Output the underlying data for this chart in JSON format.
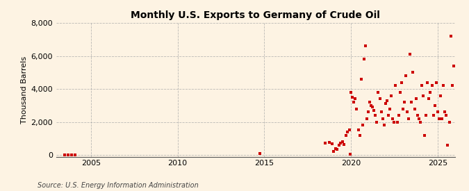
{
  "title": "Monthly U.S. Exports to Germany of Crude Oil",
  "ylabel": "Thousand Barrels",
  "source": "Source: U.S. Energy Information Administration",
  "background_color": "#fdf3e3",
  "plot_bg_color": "#fdf3e3",
  "marker_color": "#cc0000",
  "marker_size": 3.5,
  "xlim": [
    2003.0,
    2026.0
  ],
  "ylim": [
    -100,
    8000
  ],
  "yticks": [
    0,
    2000,
    4000,
    6000,
    8000
  ],
  "xticks": [
    2005,
    2010,
    2015,
    2020,
    2025
  ],
  "scatter_data": [
    [
      2003.5,
      10
    ],
    [
      2003.7,
      12
    ],
    [
      2003.9,
      8
    ],
    [
      2004.1,
      10
    ],
    [
      2014.75,
      100
    ],
    [
      2018.5,
      700
    ],
    [
      2018.75,
      750
    ],
    [
      2018.9,
      680
    ],
    [
      2019.0,
      200
    ],
    [
      2019.1,
      400
    ],
    [
      2019.2,
      350
    ],
    [
      2019.3,
      600
    ],
    [
      2019.4,
      700
    ],
    [
      2019.5,
      800
    ],
    [
      2019.6,
      650
    ],
    [
      2019.7,
      1200
    ],
    [
      2019.8,
      1400
    ],
    [
      2019.9,
      1500
    ],
    [
      2019.95,
      50
    ],
    [
      2020.0,
      3800
    ],
    [
      2020.08,
      3500
    ],
    [
      2020.17,
      3200
    ],
    [
      2020.25,
      3400
    ],
    [
      2020.33,
      2800
    ],
    [
      2020.42,
      1500
    ],
    [
      2020.5,
      1200
    ],
    [
      2020.58,
      4600
    ],
    [
      2020.67,
      1800
    ],
    [
      2020.75,
      5800
    ],
    [
      2020.83,
      6600
    ],
    [
      2020.92,
      2200
    ],
    [
      2021.0,
      2600
    ],
    [
      2021.08,
      3200
    ],
    [
      2021.17,
      3000
    ],
    [
      2021.25,
      2900
    ],
    [
      2021.33,
      2700
    ],
    [
      2021.42,
      2400
    ],
    [
      2021.5,
      2000
    ],
    [
      2021.58,
      3800
    ],
    [
      2021.67,
      3400
    ],
    [
      2021.75,
      2600
    ],
    [
      2021.83,
      2200
    ],
    [
      2021.92,
      1800
    ],
    [
      2022.0,
      3100
    ],
    [
      2022.08,
      3300
    ],
    [
      2022.17,
      2400
    ],
    [
      2022.25,
      2800
    ],
    [
      2022.33,
      3600
    ],
    [
      2022.42,
      2200
    ],
    [
      2022.5,
      2000
    ],
    [
      2022.58,
      4200
    ],
    [
      2022.67,
      2000
    ],
    [
      2022.75,
      2400
    ],
    [
      2022.83,
      3800
    ],
    [
      2022.92,
      4400
    ],
    [
      2023.0,
      2800
    ],
    [
      2023.08,
      3200
    ],
    [
      2023.17,
      4800
    ],
    [
      2023.25,
      2600
    ],
    [
      2023.33,
      2200
    ],
    [
      2023.42,
      6100
    ],
    [
      2023.5,
      3200
    ],
    [
      2023.58,
      5000
    ],
    [
      2023.67,
      2800
    ],
    [
      2023.75,
      3400
    ],
    [
      2023.83,
      2400
    ],
    [
      2023.92,
      2200
    ],
    [
      2024.0,
      2000
    ],
    [
      2024.08,
      4200
    ],
    [
      2024.17,
      3600
    ],
    [
      2024.25,
      1200
    ],
    [
      2024.33,
      2400
    ],
    [
      2024.42,
      4400
    ],
    [
      2024.5,
      3400
    ],
    [
      2024.58,
      3800
    ],
    [
      2024.67,
      4200
    ],
    [
      2024.75,
      2400
    ],
    [
      2024.83,
      3000
    ],
    [
      2024.92,
      4400
    ],
    [
      2025.0,
      2600
    ],
    [
      2025.08,
      2200
    ],
    [
      2025.17,
      3600
    ],
    [
      2025.25,
      2200
    ],
    [
      2025.33,
      4200
    ],
    [
      2025.42,
      2600
    ],
    [
      2025.5,
      2400
    ],
    [
      2025.58,
      600
    ],
    [
      2025.67,
      2000
    ],
    [
      2025.75,
      7200
    ],
    [
      2025.83,
      4200
    ],
    [
      2025.92,
      5400
    ]
  ]
}
